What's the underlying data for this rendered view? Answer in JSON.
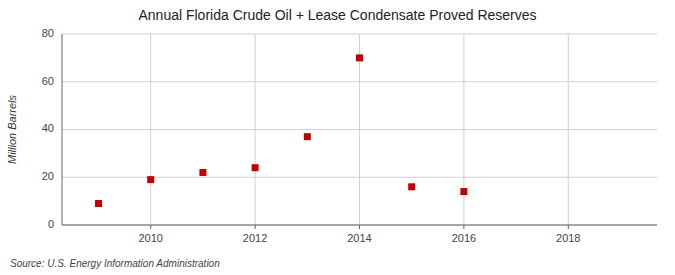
{
  "chart_data": {
    "type": "scatter",
    "title": "Annual Florida Crude Oil + Lease Condensate Proved Reserves",
    "y_label": "Million Barrels",
    "source": "Source: U.S. Energy Information Administration",
    "x": [
      2009,
      2010,
      2011,
      2012,
      2013,
      2014,
      2015,
      2016
    ],
    "values": [
      9,
      19,
      22,
      24,
      37,
      70,
      16,
      14
    ],
    "xlim": [
      2008.3,
      2019.7
    ],
    "ylim": [
      0,
      80
    ],
    "xticks": [
      2010,
      2012,
      2014,
      2016,
      2018
    ],
    "yticks": [
      0,
      20,
      40,
      60,
      80
    ],
    "color": "#c00000",
    "marker": "square",
    "grid": true
  }
}
